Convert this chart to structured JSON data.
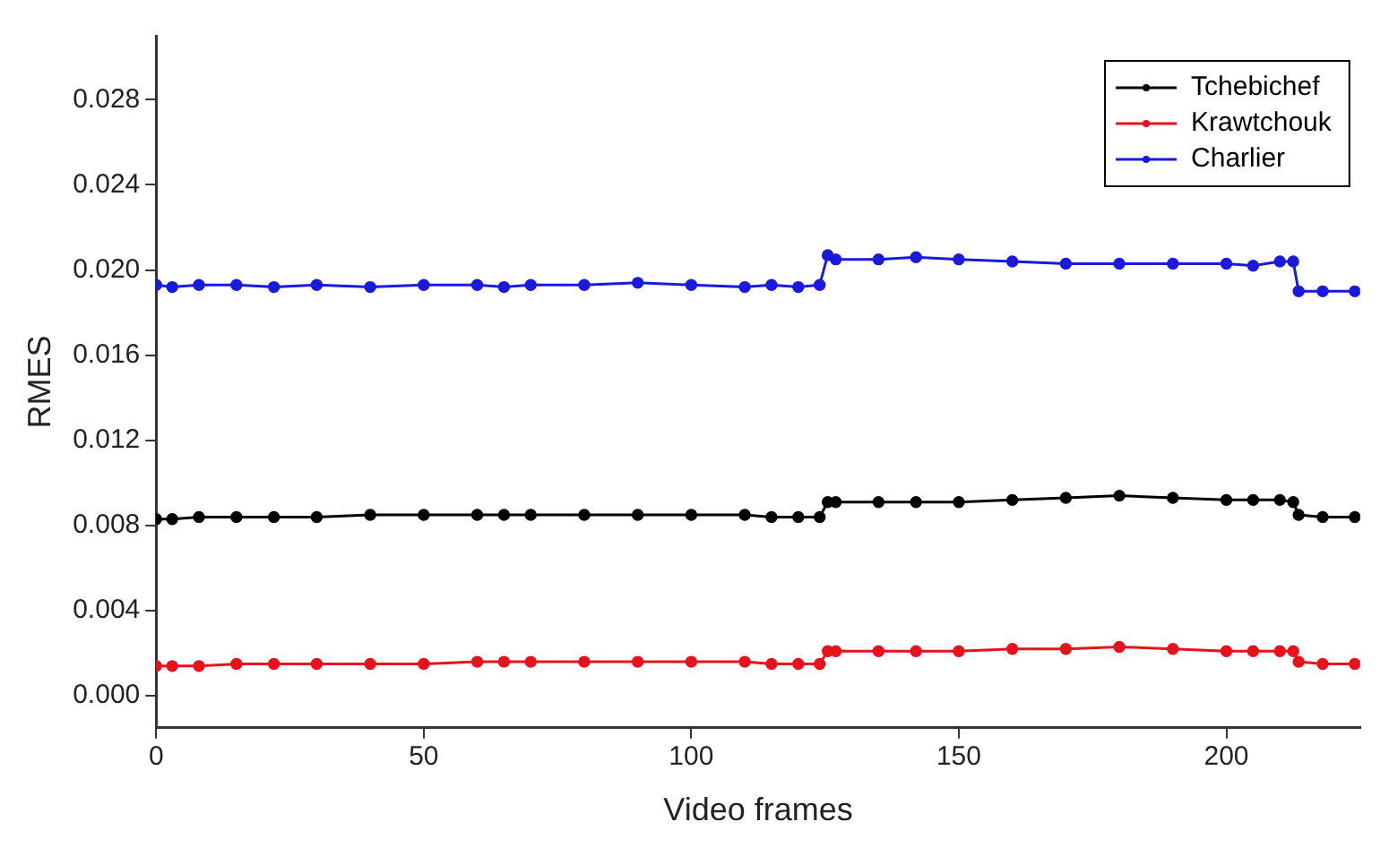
{
  "chart_data": {
    "type": "line",
    "xlabel": "Video frames",
    "ylabel": "RMES",
    "x": [
      0,
      3,
      8,
      15,
      22,
      30,
      40,
      50,
      60,
      65,
      70,
      80,
      90,
      100,
      110,
      115,
      120,
      124,
      125.5,
      127,
      135,
      142,
      150,
      160,
      170,
      180,
      190,
      200,
      205,
      210,
      212.5,
      213.5,
      218,
      224
    ],
    "series": [
      {
        "name": "Tchebichef",
        "color": "#000000",
        "values": [
          0.0083,
          0.0083,
          0.0084,
          0.0084,
          0.0084,
          0.0084,
          0.0085,
          0.0085,
          0.0085,
          0.0085,
          0.0085,
          0.0085,
          0.0085,
          0.0085,
          0.0085,
          0.0084,
          0.0084,
          0.0084,
          0.0091,
          0.0091,
          0.0091,
          0.0091,
          0.0091,
          0.0092,
          0.0093,
          0.0094,
          0.0093,
          0.0092,
          0.0092,
          0.0092,
          0.0091,
          0.0085,
          0.0084,
          0.0084
        ]
      },
      {
        "name": "Krawtchouk",
        "color": "#e8121c",
        "values": [
          0.0014,
          0.0014,
          0.0014,
          0.0015,
          0.0015,
          0.0015,
          0.0015,
          0.0015,
          0.0016,
          0.0016,
          0.0016,
          0.0016,
          0.0016,
          0.0016,
          0.0016,
          0.0015,
          0.0015,
          0.0015,
          0.0021,
          0.0021,
          0.0021,
          0.0021,
          0.0021,
          0.0022,
          0.0022,
          0.0023,
          0.0022,
          0.0021,
          0.0021,
          0.0021,
          0.0021,
          0.0016,
          0.0015,
          0.0015
        ]
      },
      {
        "name": "Charlier",
        "color": "#1a1adc",
        "values": [
          0.0193,
          0.0192,
          0.0193,
          0.0193,
          0.0192,
          0.0193,
          0.0192,
          0.0193,
          0.0193,
          0.0192,
          0.0193,
          0.0193,
          0.0194,
          0.0193,
          0.0192,
          0.0193,
          0.0192,
          0.0193,
          0.0207,
          0.0205,
          0.0205,
          0.0206,
          0.0205,
          0.0204,
          0.0203,
          0.0203,
          0.0203,
          0.0203,
          0.0202,
          0.0204,
          0.0204,
          0.019,
          0.019,
          0.019
        ]
      }
    ],
    "xlim": [
      0,
      225
    ],
    "xticks": [
      0,
      50,
      100,
      150,
      200
    ],
    "ylim": [
      -0.0015,
      0.031
    ],
    "yticks": [
      {
        "value": 0,
        "label": "0.000"
      },
      {
        "value": 0.004,
        "label": "0.004"
      },
      {
        "value": 0.008,
        "label": "0.008"
      },
      {
        "value": 0.012,
        "label": "0.012"
      },
      {
        "value": 0.016,
        "label": "0.016"
      },
      {
        "value": 0.02,
        "label": "0.020"
      },
      {
        "value": 0.024,
        "label": "0.024"
      },
      {
        "value": 0.028,
        "label": "0.028"
      }
    ],
    "legend": "top right",
    "grid": false,
    "marker": "circle",
    "line_style": "solid"
  }
}
